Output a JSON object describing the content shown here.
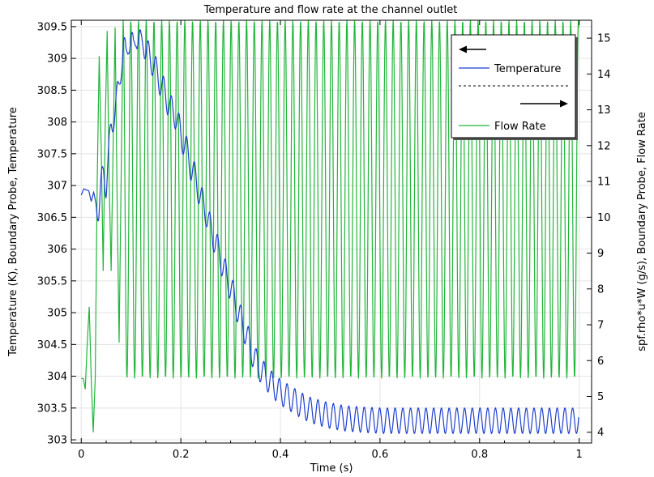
{
  "chart_data": {
    "type": "line",
    "title": "Temperature and flow rate at the channel outlet",
    "xlabel": "Time (s)",
    "ylabel_left": "Temperature (K), Boundary Probe, Temperature",
    "ylabel_right": "spf.rho*u*W (g/s), Boundary Probe, Flow Rate",
    "xlim": [
      -0.02,
      1.025
    ],
    "ylim_left": [
      302.95,
      309.6
    ],
    "ylim_right": [
      3.7,
      15.5
    ],
    "x_ticks": [
      "0",
      "0.2",
      "0.4",
      "0.6",
      "0.8",
      "1"
    ],
    "y_ticks_left": [
      "303",
      "303.5",
      "304",
      "304.5",
      "305",
      "305.5",
      "306",
      "306.5",
      "307",
      "307.5",
      "308",
      "308.5",
      "309",
      "309.5"
    ],
    "y_ticks_right": [
      "4",
      "5",
      "6",
      "7",
      "8",
      "9",
      "10",
      "11",
      "12",
      "13",
      "14",
      "15"
    ],
    "grid": true,
    "legend_position": "top-right",
    "series": [
      {
        "name": "Temperature",
        "axis": "left",
        "color": "#1f3fd0",
        "x": [
          0.0,
          0.005,
          0.01,
          0.015,
          0.02,
          0.025,
          0.03,
          0.035,
          0.04,
          0.045,
          0.05,
          0.055,
          0.06,
          0.065,
          0.07,
          0.075,
          0.08,
          0.085,
          0.09,
          0.095,
          0.1,
          0.105,
          0.11,
          0.115,
          0.12,
          0.125,
          0.13,
          0.14,
          0.15,
          0.16,
          0.17,
          0.18,
          0.19,
          0.2,
          0.21,
          0.22,
          0.23,
          0.24,
          0.25,
          0.26,
          0.27,
          0.28,
          0.29,
          0.3,
          0.31,
          0.32,
          0.33,
          0.34,
          0.35,
          0.36,
          0.37,
          0.38,
          0.39,
          0.4,
          0.42,
          0.44,
          0.46,
          0.48,
          0.5,
          0.52,
          0.54,
          0.56,
          0.58,
          0.6,
          0.65,
          0.7,
          0.75,
          0.8,
          0.85,
          0.9,
          0.95,
          1.0
        ],
        "values": [
          306.85,
          306.95,
          306.93,
          306.92,
          306.75,
          306.9,
          306.7,
          306.65,
          307.0,
          307.2,
          307.0,
          307.5,
          307.9,
          308.1,
          308.3,
          308.5,
          308.9,
          309.2,
          309.0,
          309.3,
          309.3,
          309.1,
          309.4,
          309.3,
          309.2,
          309.3,
          309.1,
          309.0,
          308.8,
          308.6,
          308.4,
          308.2,
          308.1,
          307.8,
          307.6,
          307.3,
          307.1,
          306.8,
          306.6,
          306.3,
          306.1,
          305.85,
          305.6,
          305.4,
          305.15,
          304.9,
          304.7,
          304.45,
          304.25,
          304.1,
          304.0,
          303.9,
          303.82,
          303.75,
          303.65,
          303.55,
          303.47,
          303.42,
          303.38,
          303.35,
          303.33,
          303.32,
          303.31,
          303.3,
          303.3,
          303.3,
          303.3,
          303.3,
          303.3,
          303.3,
          303.3,
          303.3
        ]
      },
      {
        "name": "Flow Rate",
        "axis": "right",
        "color": "#22b53a",
        "x": [
          0.0,
          0.004,
          0.008,
          0.012,
          0.016,
          0.02,
          0.024,
          0.028,
          0.032,
          0.036,
          0.04,
          0.044,
          0.048,
          0.052,
          0.056,
          0.06,
          0.064,
          0.068,
          0.072,
          0.076,
          0.08,
          0.084
        ],
        "values": [
          5.5,
          5.5,
          5.2,
          6.5,
          7.5,
          5.5,
          4.0,
          5.5,
          11.0,
          14.5,
          12.0,
          8.5,
          12.5,
          15.2,
          11.0,
          8.5,
          12.0,
          15.3,
          10.5,
          6.5,
          11.0,
          15.5
        ],
        "oscillation": {
          "from_x": 0.084,
          "to_x": 1.0,
          "period": 0.0155,
          "min": 5.5,
          "max": 15.5
        }
      }
    ]
  }
}
